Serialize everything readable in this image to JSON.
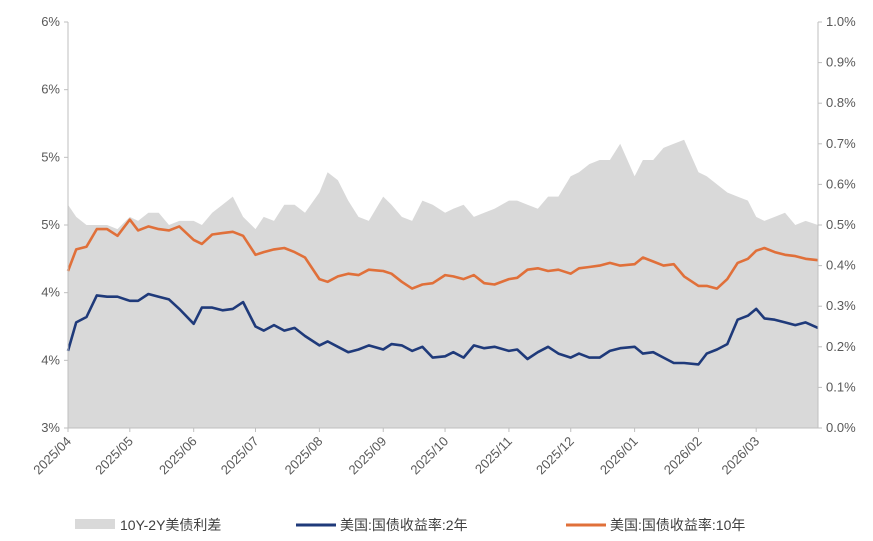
{
  "chart_data": {
    "type": "line",
    "title": "",
    "left_axis": {
      "tick_labels": [
        "6%",
        "6%",
        "5%",
        "5%",
        "4%",
        "4%",
        "3%"
      ],
      "ylim": [
        3.0,
        6.0
      ]
    },
    "right_axis": {
      "tick_labels": [
        "1.0%",
        "0.9%",
        "0.8%",
        "0.7%",
        "0.6%",
        "0.5%",
        "0.4%",
        "0.3%",
        "0.2%",
        "0.1%",
        "0.0%"
      ],
      "ylim": [
        0.0,
        1.0
      ]
    },
    "x_tick_labels": [
      "2025/04",
      "2025/05",
      "2025/06",
      "2025/07",
      "2025/08",
      "2025/09",
      "2025/10",
      "2025/11",
      "2025/12",
      "2026/01",
      "2026/02",
      "2026/03"
    ],
    "x_range": [
      "2025-04-01",
      "2026-03-31"
    ],
    "grid": false,
    "legend_position": "bottom",
    "series": [
      {
        "name": "10Y-2Y美债利差",
        "type": "area",
        "axis": "right",
        "color": "#d9d9d9",
        "x": [
          "2025-04-01",
          "2025-04-05",
          "2025-04-10",
          "2025-04-15",
          "2025-04-20",
          "2025-04-25",
          "2025-05-01",
          "2025-05-05",
          "2025-05-10",
          "2025-05-15",
          "2025-05-20",
          "2025-05-25",
          "2025-06-01",
          "2025-06-05",
          "2025-06-10",
          "2025-06-15",
          "2025-06-20",
          "2025-06-25",
          "2025-07-01",
          "2025-07-05",
          "2025-07-10",
          "2025-07-15",
          "2025-07-20",
          "2025-07-25",
          "2025-08-01",
          "2025-08-05",
          "2025-08-10",
          "2025-08-15",
          "2025-08-20",
          "2025-08-25",
          "2025-09-01",
          "2025-09-05",
          "2025-09-10",
          "2025-09-15",
          "2025-09-20",
          "2025-09-25",
          "2025-10-01",
          "2025-10-05",
          "2025-10-10",
          "2025-10-15",
          "2025-10-20",
          "2025-10-25",
          "2025-11-01",
          "2025-11-05",
          "2025-11-10",
          "2025-11-15",
          "2025-11-20",
          "2025-11-25",
          "2025-12-01",
          "2025-12-05",
          "2025-12-10",
          "2025-12-15",
          "2025-12-20",
          "2025-12-25",
          "2026-01-01",
          "2026-01-05",
          "2026-01-10",
          "2026-01-15",
          "2026-01-20",
          "2026-01-25",
          "2026-02-01",
          "2026-02-05",
          "2026-02-10",
          "2026-02-15",
          "2026-02-20",
          "2026-02-25",
          "2026-03-01",
          "2026-03-05",
          "2026-03-10",
          "2026-03-15",
          "2026-03-20",
          "2026-03-25",
          "2026-03-31"
        ],
        "values": [
          0.55,
          0.52,
          0.5,
          0.5,
          0.5,
          0.49,
          0.52,
          0.51,
          0.53,
          0.53,
          0.5,
          0.51,
          0.51,
          0.5,
          0.53,
          0.55,
          0.57,
          0.52,
          0.49,
          0.52,
          0.51,
          0.55,
          0.55,
          0.53,
          0.58,
          0.63,
          0.61,
          0.56,
          0.52,
          0.51,
          0.57,
          0.55,
          0.52,
          0.51,
          0.56,
          0.55,
          0.53,
          0.54,
          0.55,
          0.52,
          0.53,
          0.54,
          0.56,
          0.56,
          0.55,
          0.54,
          0.57,
          0.57,
          0.62,
          0.63,
          0.65,
          0.66,
          0.66,
          0.7,
          0.62,
          0.66,
          0.66,
          0.69,
          0.7,
          0.71,
          0.63,
          0.62,
          0.6,
          0.58,
          0.57,
          0.56,
          0.52,
          0.51,
          0.52,
          0.53,
          0.5,
          0.51,
          0.5
        ]
      },
      {
        "name": "美国:国债收益率:2年",
        "type": "line",
        "axis": "left",
        "color": "#1f3a7a",
        "x": [
          "2025-04-01",
          "2025-04-05",
          "2025-04-10",
          "2025-04-15",
          "2025-04-20",
          "2025-04-25",
          "2025-05-01",
          "2025-05-05",
          "2025-05-10",
          "2025-05-15",
          "2025-05-20",
          "2025-05-25",
          "2025-06-01",
          "2025-06-05",
          "2025-06-10",
          "2025-06-15",
          "2025-06-20",
          "2025-06-25",
          "2025-07-01",
          "2025-07-05",
          "2025-07-10",
          "2025-07-15",
          "2025-07-20",
          "2025-07-25",
          "2025-08-01",
          "2025-08-05",
          "2025-08-10",
          "2025-08-15",
          "2025-08-20",
          "2025-08-25",
          "2025-09-01",
          "2025-09-05",
          "2025-09-10",
          "2025-09-15",
          "2025-09-20",
          "2025-09-25",
          "2025-10-01",
          "2025-10-05",
          "2025-10-10",
          "2025-10-15",
          "2025-10-20",
          "2025-10-25",
          "2025-11-01",
          "2025-11-05",
          "2025-11-10",
          "2025-11-15",
          "2025-11-20",
          "2025-11-25",
          "2025-12-01",
          "2025-12-05",
          "2025-12-10",
          "2025-12-15",
          "2025-12-20",
          "2025-12-25",
          "2026-01-01",
          "2026-01-05",
          "2026-01-10",
          "2026-01-15",
          "2026-01-20",
          "2026-01-25",
          "2026-02-01",
          "2026-02-05",
          "2026-02-10",
          "2026-02-15",
          "2026-02-20",
          "2026-02-25",
          "2026-03-01",
          "2026-03-05",
          "2026-03-10",
          "2026-03-15",
          "2026-03-20",
          "2026-03-25",
          "2026-03-31"
        ],
        "values": [
          3.57,
          3.78,
          3.82,
          3.98,
          3.97,
          3.97,
          3.94,
          3.94,
          3.99,
          3.97,
          3.95,
          3.88,
          3.77,
          3.89,
          3.89,
          3.87,
          3.88,
          3.93,
          3.75,
          3.72,
          3.76,
          3.72,
          3.74,
          3.68,
          3.61,
          3.64,
          3.6,
          3.56,
          3.58,
          3.61,
          3.58,
          3.62,
          3.61,
          3.57,
          3.6,
          3.52,
          3.53,
          3.56,
          3.52,
          3.61,
          3.59,
          3.6,
          3.57,
          3.58,
          3.51,
          3.56,
          3.6,
          3.55,
          3.52,
          3.55,
          3.52,
          3.52,
          3.57,
          3.59,
          3.6,
          3.55,
          3.56,
          3.52,
          3.48,
          3.48,
          3.47,
          3.55,
          3.58,
          3.62,
          3.8,
          3.83,
          3.88,
          3.81,
          3.8,
          3.78,
          3.76,
          3.78,
          3.74
        ]
      },
      {
        "name": "美国:国债收益率:10年",
        "type": "line",
        "axis": "left",
        "color": "#e0703a",
        "x": [
          "2025-04-01",
          "2025-04-05",
          "2025-04-10",
          "2025-04-15",
          "2025-04-20",
          "2025-04-25",
          "2025-05-01",
          "2025-05-05",
          "2025-05-10",
          "2025-05-15",
          "2025-05-20",
          "2025-05-25",
          "2025-06-01",
          "2025-06-05",
          "2025-06-10",
          "2025-06-15",
          "2025-06-20",
          "2025-06-25",
          "2025-07-01",
          "2025-07-05",
          "2025-07-10",
          "2025-07-15",
          "2025-07-20",
          "2025-07-25",
          "2025-08-01",
          "2025-08-05",
          "2025-08-10",
          "2025-08-15",
          "2025-08-20",
          "2025-08-25",
          "2025-09-01",
          "2025-09-05",
          "2025-09-10",
          "2025-09-15",
          "2025-09-20",
          "2025-09-25",
          "2025-10-01",
          "2025-10-05",
          "2025-10-10",
          "2025-10-15",
          "2025-10-20",
          "2025-10-25",
          "2025-11-01",
          "2025-11-05",
          "2025-11-10",
          "2025-11-15",
          "2025-11-20",
          "2025-11-25",
          "2025-12-01",
          "2025-12-05",
          "2025-12-10",
          "2025-12-15",
          "2025-12-20",
          "2025-12-25",
          "2026-01-01",
          "2026-01-05",
          "2026-01-10",
          "2026-01-15",
          "2026-01-20",
          "2026-01-25",
          "2026-02-01",
          "2026-02-05",
          "2026-02-10",
          "2026-02-15",
          "2026-02-20",
          "2026-02-25",
          "2026-03-01",
          "2026-03-05",
          "2026-03-10",
          "2026-03-15",
          "2026-03-20",
          "2026-03-25",
          "2026-03-31"
        ],
        "values": [
          4.16,
          4.32,
          4.34,
          4.47,
          4.47,
          4.42,
          4.54,
          4.46,
          4.49,
          4.47,
          4.46,
          4.49,
          4.39,
          4.36,
          4.43,
          4.44,
          4.45,
          4.42,
          4.28,
          4.3,
          4.32,
          4.33,
          4.3,
          4.26,
          4.1,
          4.08,
          4.12,
          4.14,
          4.13,
          4.17,
          4.16,
          4.14,
          4.08,
          4.03,
          4.06,
          4.07,
          4.13,
          4.12,
          4.1,
          4.13,
          4.07,
          4.06,
          4.1,
          4.11,
          4.17,
          4.18,
          4.16,
          4.17,
          4.14,
          4.18,
          4.19,
          4.2,
          4.22,
          4.2,
          4.21,
          4.26,
          4.23,
          4.2,
          4.21,
          4.12,
          4.05,
          4.05,
          4.03,
          4.1,
          4.22,
          4.25,
          4.31,
          4.33,
          4.3,
          4.28,
          4.27,
          4.25,
          4.24
        ]
      }
    ]
  }
}
